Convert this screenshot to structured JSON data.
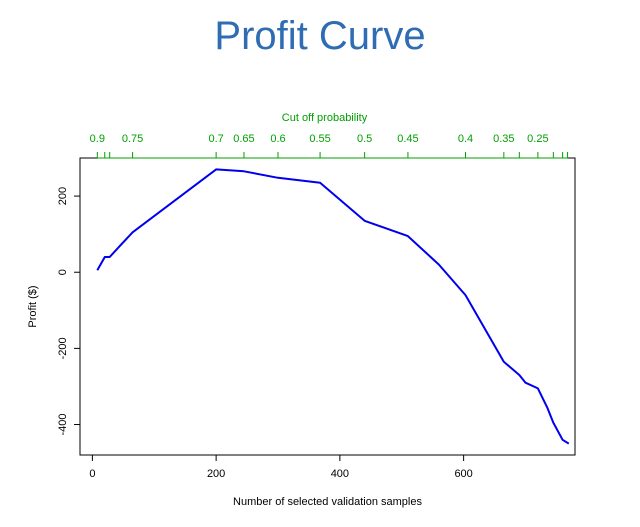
{
  "title": "Profit Curve",
  "colors": {
    "title": "#2e6db4",
    "line": "#0000ee",
    "top_axis": "#00a000",
    "axis": "#000000"
  },
  "chart_data": {
    "type": "line",
    "xlabel": "Number of selected validation samples",
    "ylabel": "Profit ($)",
    "top_axis_label": "Cut off probability",
    "xlim": [
      -20,
      780
    ],
    "ylim": [
      -480,
      300
    ],
    "x_ticks": [
      "0",
      "200",
      "400",
      "600"
    ],
    "y_ticks": [
      "-400",
      "-200",
      "0",
      "200"
    ],
    "top_ticks": [
      {
        "label": "0.9",
        "x": 8
      },
      {
        "label": "",
        "x": 20
      },
      {
        "label": "",
        "x": 28
      },
      {
        "label": "0.75",
        "x": 65
      },
      {
        "label": "0.7",
        "x": 200
      },
      {
        "label": "0.65",
        "x": 245
      },
      {
        "label": "0.6",
        "x": 300
      },
      {
        "label": "0.55",
        "x": 368
      },
      {
        "label": "0.5",
        "x": 440
      },
      {
        "label": "0.45",
        "x": 510
      },
      {
        "label": "0.4",
        "x": 603
      },
      {
        "label": "0.35",
        "x": 665
      },
      {
        "label": "",
        "x": 690
      },
      {
        "label": "0.25",
        "x": 720
      },
      {
        "label": "",
        "x": 745
      },
      {
        "label": "",
        "x": 760
      },
      {
        "label": "",
        "x": 768
      }
    ],
    "series": [
      {
        "x": [
          8,
          20,
          28,
          45,
          65,
          200,
          245,
          300,
          368,
          440,
          510,
          560,
          603,
          665,
          690,
          700,
          720,
          735,
          745,
          760,
          770
        ],
        "y": [
          5,
          40,
          40,
          70,
          105,
          270,
          265,
          248,
          235,
          135,
          95,
          20,
          -60,
          -235,
          -270,
          -290,
          -305,
          -355,
          -395,
          -440,
          -450
        ]
      }
    ]
  }
}
